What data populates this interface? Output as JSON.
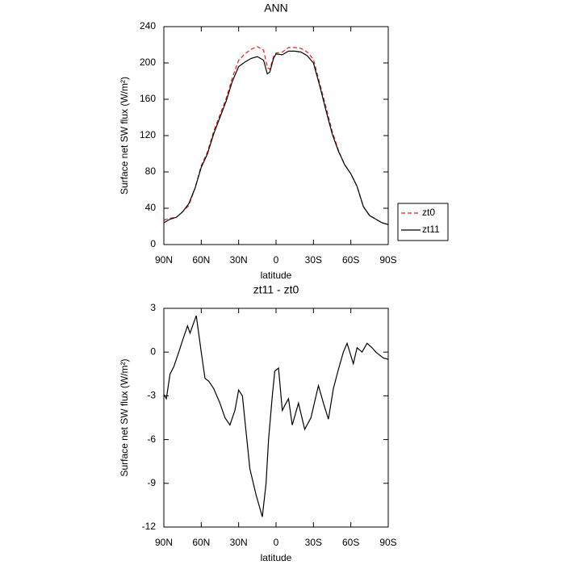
{
  "chart_data": [
    {
      "type": "line",
      "title": "ANN",
      "x_label": "latitude",
      "y_label": "Surface net SW flux (W/m²)",
      "x": [
        90,
        85,
        80,
        75,
        70,
        65,
        60,
        55,
        50,
        45,
        40,
        35,
        30,
        25,
        20,
        15,
        10,
        7,
        5,
        2,
        0,
        -5,
        -10,
        -15,
        -20,
        -25,
        -30,
        -35,
        -40,
        -45,
        -50,
        -55,
        -60,
        -65,
        -70,
        -75,
        -80,
        -85,
        -90
      ],
      "series": [
        {
          "name": "zt0",
          "color": "#e8201c",
          "linestyle": "dashed",
          "values": [
            27,
            29,
            30,
            36,
            43,
            62,
            87,
            102,
            125,
            143,
            161,
            184,
            203,
            210,
            215,
            218,
            214,
            195,
            193,
            207,
            211,
            212,
            217,
            217,
            216,
            212,
            204,
            178,
            152,
            125,
            104,
            88,
            78,
            64,
            42,
            32,
            28,
            24,
            22
          ]
        },
        {
          "name": "zt11",
          "color": "#000000",
          "linestyle": "solid",
          "values": [
            24,
            28,
            30,
            36,
            45,
            62,
            85,
            100,
            122,
            140,
            158,
            180,
            196,
            201,
            205,
            207,
            203,
            188,
            190,
            205,
            210,
            209,
            213,
            213,
            212,
            208,
            200,
            175,
            148,
            122,
            103,
            88,
            78,
            64,
            42,
            32,
            28,
            24,
            22
          ]
        }
      ],
      "xlim": [
        90,
        -90
      ],
      "xticks": [
        {
          "value": 90,
          "label": "90N"
        },
        {
          "value": 60,
          "label": "60N"
        },
        {
          "value": 30,
          "label": "30N"
        },
        0,
        {
          "value": -30,
          "label": "30S"
        },
        {
          "value": -60,
          "label": "60S"
        },
        {
          "value": -90,
          "label": "90S"
        }
      ],
      "ylim": [
        0,
        240
      ],
      "yticks": [
        0,
        40,
        80,
        120,
        160,
        200,
        240
      ],
      "legend": "right"
    },
    {
      "type": "line",
      "title": "zt11 - zt0",
      "x_label": "latitude",
      "y_label": "Surface net SW flux (W/m²)",
      "x": [
        90,
        88,
        85,
        82,
        78,
        75,
        71,
        69,
        64,
        60,
        57,
        54,
        50,
        45,
        41,
        37,
        33,
        30,
        27,
        24,
        21,
        16,
        11,
        8,
        6,
        3,
        1,
        -2,
        -5,
        -8,
        -10,
        -13,
        -18,
        -23,
        -28,
        -34,
        -38,
        -42,
        -46,
        -50,
        -54,
        -57,
        -62,
        -65,
        -69,
        -73,
        -77,
        -80,
        -86,
        -90
      ],
      "values": [
        -2.9,
        -3.2,
        -1.5,
        -1,
        0,
        0.8,
        1.8,
        1.3,
        2.5,
        0,
        -1.8,
        -2,
        -2.5,
        -3.5,
        -4.5,
        -5,
        -4,
        -2.6,
        -3,
        -5.5,
        -8,
        -9.8,
        -11.3,
        -9,
        -6,
        -3,
        -1.3,
        -1.1,
        -4,
        -3.5,
        -3.2,
        -5,
        -3.5,
        -5.3,
        -4.5,
        -2.3,
        -3.5,
        -4.6,
        -2.5,
        -1.2,
        0,
        0.6,
        -0.8,
        0.3,
        0,
        0.6,
        0.3,
        0,
        -0.4,
        -0.5
      ],
      "color": "#000000",
      "xlim": [
        90,
        -90
      ],
      "xticks": [
        {
          "value": 90,
          "label": "90N"
        },
        {
          "value": 60,
          "label": "60N"
        },
        {
          "value": 30,
          "label": "30N"
        },
        0,
        {
          "value": -30,
          "label": "30S"
        },
        {
          "value": -60,
          "label": "60S"
        },
        {
          "value": -90,
          "label": "90S"
        }
      ],
      "ylim": [
        -12,
        3
      ],
      "yticks": [
        -12,
        -9,
        -6,
        -3,
        0,
        3
      ]
    }
  ]
}
